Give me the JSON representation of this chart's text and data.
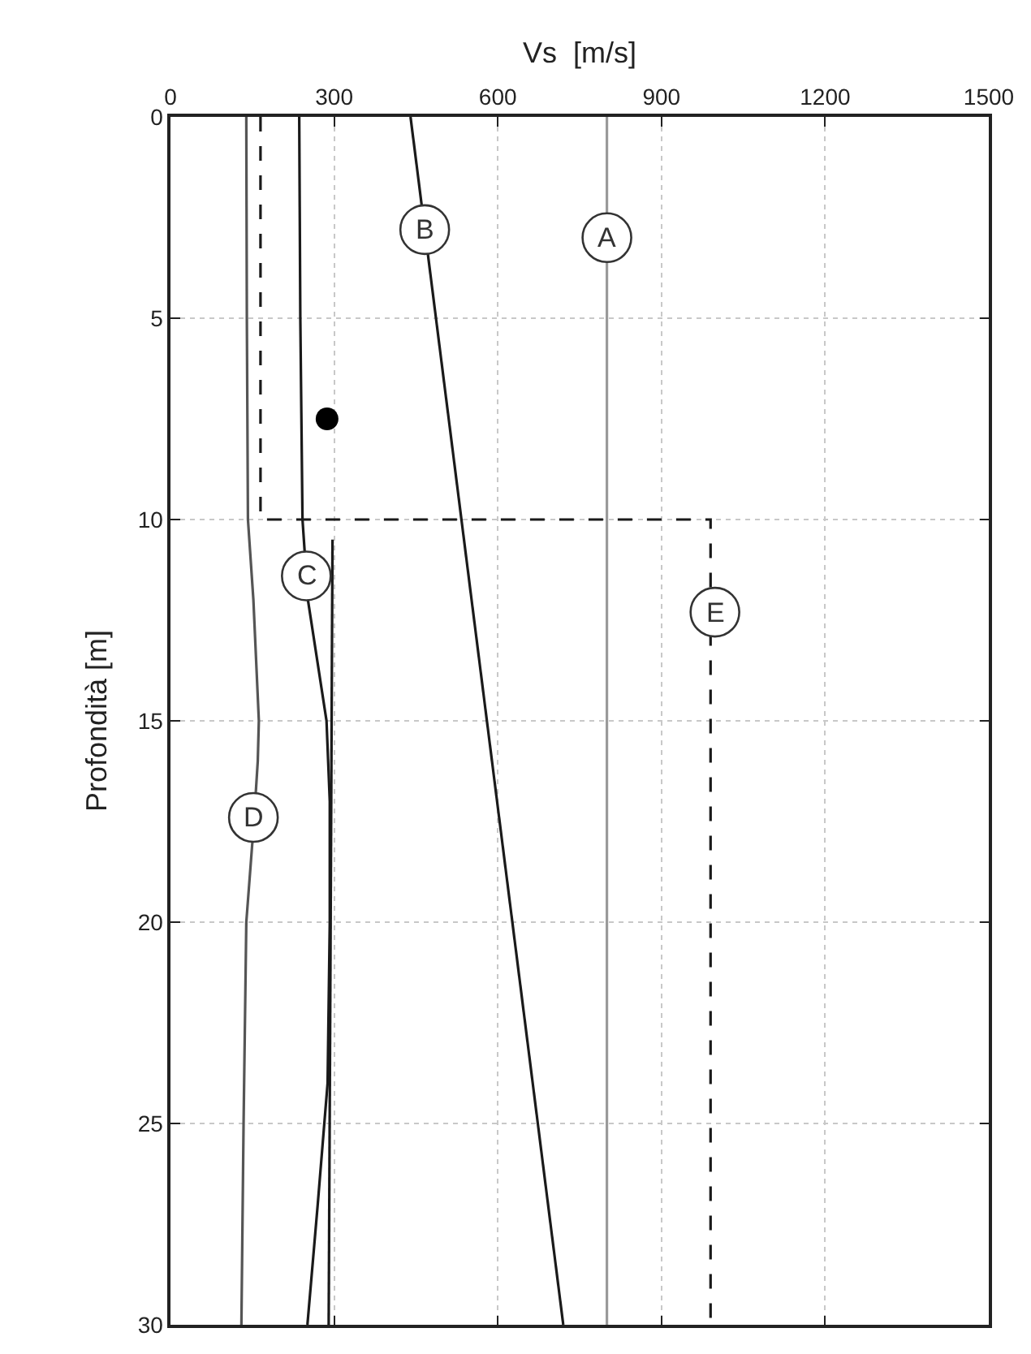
{
  "chart_data": {
    "type": "line",
    "xlabel": "Vs  [m/s]",
    "ylabel": "Profondità [m]",
    "xlim": [
      0,
      1500
    ],
    "xticks": [
      0,
      300,
      600,
      900,
      1200,
      1500
    ],
    "ylim": [
      30,
      0
    ],
    "yticks": [
      0,
      5,
      10,
      15,
      20,
      25,
      30
    ],
    "grid": true,
    "marker": "none",
    "series": [
      {
        "color": "#9a9a9a",
        "x": [
          800,
          800
        ],
        "values": [
          0,
          30
        ]
      },
      {
        "color": "#1a1a1a",
        "x": [
          440,
          720
        ],
        "values": [
          0,
          30
        ]
      },
      {
        "color": "#1a1a1a",
        "x": [
          236,
          238,
          242,
          252,
          286,
          292,
          292,
          288,
          270,
          251
        ],
        "values": [
          0,
          5,
          10,
          12,
          15,
          17,
          20,
          24,
          27,
          30
        ]
      },
      {
        "color": "#1a1a1a",
        "x": [
          297,
          290
        ],
        "values": [
          10.5,
          30
        ]
      },
      {
        "color": "#555555",
        "x": [
          139,
          140,
          142,
          152,
          162,
          160,
          153,
          139,
          134,
          130
        ],
        "values": [
          0,
          5,
          10,
          12,
          15,
          16,
          17.5,
          20,
          25,
          30
        ]
      },
      {
        "color": "#1a1a1a",
        "line_style": "dashed",
        "x": [
          165,
          165,
          990,
          990
        ],
        "values": [
          0,
          10,
          10,
          30
        ]
      },
      {
        "type": "scatter",
        "marker": "circle",
        "color": "#000000",
        "x": [
          287
        ],
        "values": [
          7.5
        ]
      }
    ],
    "annotations": [
      {
        "text": "A",
        "x": 800,
        "y": 3
      },
      {
        "text": "B",
        "x": 466,
        "y": 2.8
      },
      {
        "text": "C",
        "x": 249,
        "y": 11.4
      },
      {
        "text": "D",
        "x": 152,
        "y": 17.4
      },
      {
        "text": "E",
        "x": 998,
        "y": 12.3
      }
    ]
  }
}
